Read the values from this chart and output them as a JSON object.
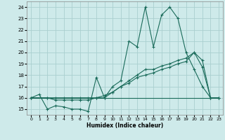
{
  "xlabel": "Humidex (Indice chaleur)",
  "ylabel": "",
  "bg_color": "#ceeaea",
  "grid_color": "#aacfcf",
  "line_color": "#1a6b5a",
  "xlim": [
    -0.5,
    23.5
  ],
  "ylim": [
    14.5,
    24.5
  ],
  "xticks": [
    0,
    1,
    2,
    3,
    4,
    5,
    6,
    7,
    8,
    9,
    10,
    11,
    12,
    13,
    14,
    15,
    16,
    17,
    18,
    19,
    20,
    21,
    22,
    23
  ],
  "yticks": [
    15,
    16,
    17,
    18,
    19,
    20,
    21,
    22,
    23,
    24
  ],
  "series": [
    {
      "x": [
        0,
        1,
        2,
        3,
        4,
        5,
        6,
        7,
        8,
        9,
        10,
        11,
        12,
        13,
        14,
        15,
        16,
        17,
        18,
        19,
        20,
        21,
        22,
        23
      ],
      "y": [
        16,
        16.3,
        15,
        15.3,
        15.2,
        15,
        15,
        14.8,
        17.8,
        16,
        17,
        17.5,
        21,
        20.5,
        24,
        20.5,
        23.3,
        24,
        23,
        20,
        18.5,
        17,
        16,
        16
      ],
      "marker": true
    },
    {
      "x": [
        0,
        2,
        3,
        4,
        5,
        6,
        7,
        8,
        9,
        10,
        11,
        12,
        13,
        14,
        15,
        16,
        17,
        18,
        19,
        20,
        21,
        22,
        23
      ],
      "y": [
        16,
        16,
        16,
        16,
        16,
        16,
        16,
        16,
        16,
        16.5,
        17,
        17.5,
        18,
        18.5,
        18.5,
        18.8,
        19,
        19.3,
        19.5,
        20,
        19.3,
        16,
        16
      ],
      "marker": true
    },
    {
      "x": [
        0,
        2,
        3,
        4,
        5,
        6,
        7,
        8,
        9,
        10,
        11,
        12,
        13,
        14,
        15,
        16,
        17,
        18,
        19,
        20,
        21,
        22,
        23
      ],
      "y": [
        16,
        16,
        15.8,
        15.8,
        15.8,
        15.8,
        15.8,
        16,
        16.2,
        16.5,
        17,
        17.3,
        17.8,
        18,
        18.2,
        18.5,
        18.7,
        19,
        19.2,
        20,
        18.7,
        16,
        16
      ],
      "marker": true
    },
    {
      "x": [
        0,
        2,
        3,
        4,
        5,
        6,
        7,
        8,
        9,
        10,
        11,
        12,
        13,
        14,
        15,
        16,
        17,
        18,
        19,
        20,
        21,
        22,
        23
      ],
      "y": [
        16,
        16,
        16,
        16,
        16,
        16,
        16,
        16,
        16,
        16,
        16,
        16,
        16,
        16,
        16,
        16,
        16,
        16,
        16,
        16,
        16,
        16,
        16
      ],
      "marker": false
    }
  ]
}
